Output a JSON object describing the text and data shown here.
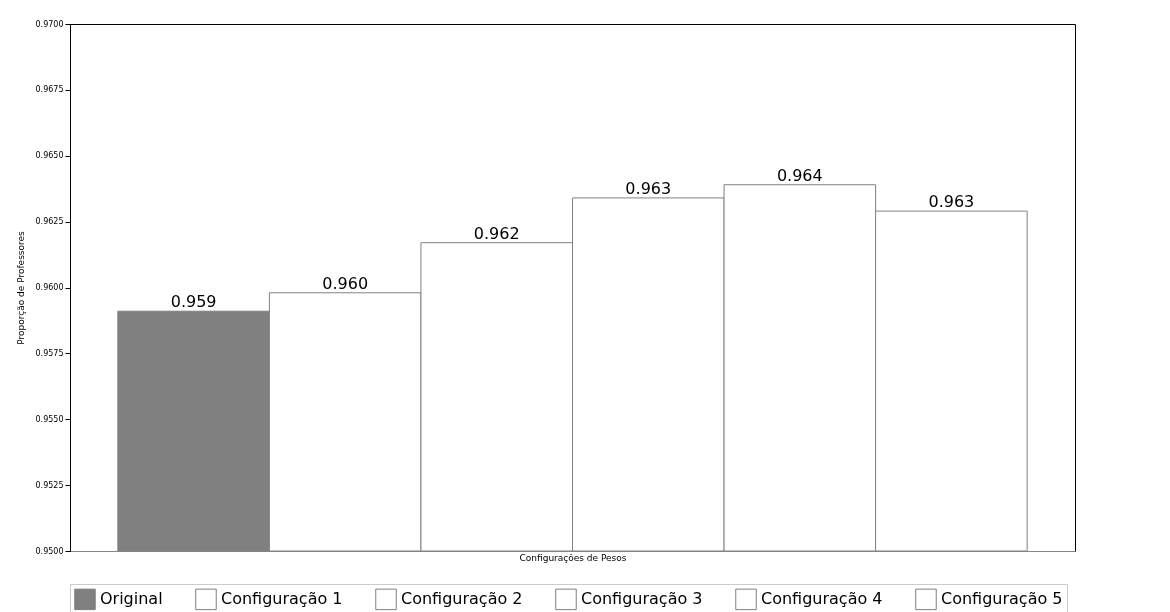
{
  "chart_data": {
    "type": "bar",
    "xlabel": "Configurações de Pesos",
    "ylabel": "Proporção de Professores",
    "categories": [
      null
    ],
    "series": [
      {
        "name": "Original",
        "color": "#808080",
        "values": [
          0.9591
        ],
        "value_labels": [
          "0.959"
        ]
      },
      {
        "name": "Configuração 1",
        "color": "#ffffff",
        "values": [
          0.9598
        ],
        "value_labels": [
          "0.960"
        ]
      },
      {
        "name": "Configuração 2",
        "color": "#ffffff",
        "values": [
          0.9617
        ],
        "value_labels": [
          "0.962"
        ]
      },
      {
        "name": "Configuração 3",
        "color": "#ffffff",
        "values": [
          0.9634
        ],
        "value_labels": [
          "0.963"
        ]
      },
      {
        "name": "Configuração 4",
        "color": "#ffffff",
        "values": [
          0.9639
        ],
        "value_labels": [
          "0.964"
        ]
      },
      {
        "name": "Configuração 5",
        "color": "#ffffff",
        "values": [
          0.9629
        ],
        "value_labels": [
          "0.963"
        ]
      }
    ],
    "ylim": [
      0.95,
      0.97
    ],
    "yticks": [
      {
        "value": 0.95,
        "label": "0.9500"
      },
      {
        "value": 0.9525,
        "label": "0.9525"
      },
      {
        "value": 0.955,
        "label": "0.9550"
      },
      {
        "value": 0.9575,
        "label": "0.9575"
      },
      {
        "value": 0.96,
        "label": "0.9600"
      },
      {
        "value": 0.9625,
        "label": "0.9625"
      },
      {
        "value": 0.965,
        "label": "0.9650"
      },
      {
        "value": 0.9675,
        "label": "0.9675"
      },
      {
        "value": 0.97,
        "label": "0.9700"
      }
    ],
    "tick_labels": "y",
    "legend": "bottom",
    "grid": false
  }
}
